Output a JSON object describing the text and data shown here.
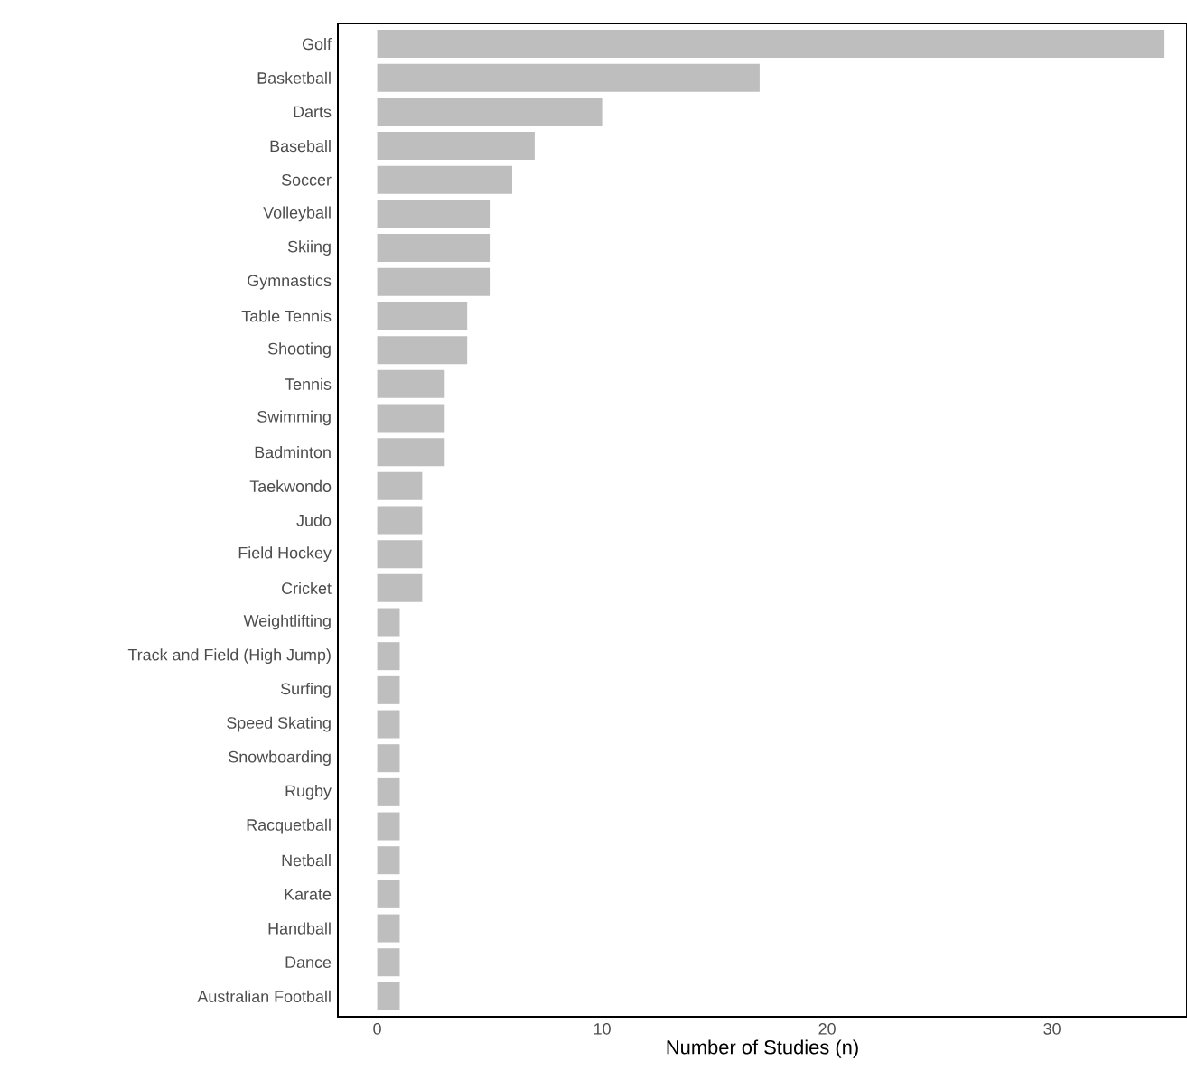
{
  "chart_data": {
    "type": "bar",
    "orientation": "horizontal",
    "xlabel": "Number of Studies (n)",
    "categories": [
      "Golf",
      "Basketball",
      "Darts",
      "Baseball",
      "Soccer",
      "Volleyball",
      "Skiing",
      "Gymnastics",
      "Table Tennis",
      "Shooting",
      "Tennis",
      "Swimming",
      "Badminton",
      "Taekwondo",
      "Judo",
      "Field Hockey",
      "Cricket",
      "Weightlifting",
      "Track and Field (High Jump)",
      "Surfing",
      "Speed Skating",
      "Snowboarding",
      "Rugby",
      "Racquetball",
      "Netball",
      "Karate",
      "Handball",
      "Dance",
      "Australian Football"
    ],
    "values": [
      35,
      17,
      10,
      7,
      6,
      5,
      5,
      5,
      4,
      4,
      3,
      3,
      3,
      2,
      2,
      2,
      2,
      1,
      1,
      1,
      1,
      1,
      1,
      1,
      1,
      1,
      1,
      1,
      1
    ],
    "color": "#bebebe",
    "xlim": [
      -1.75,
      36
    ],
    "xticks": [
      0,
      10,
      20,
      30
    ],
    "grid": false
  }
}
